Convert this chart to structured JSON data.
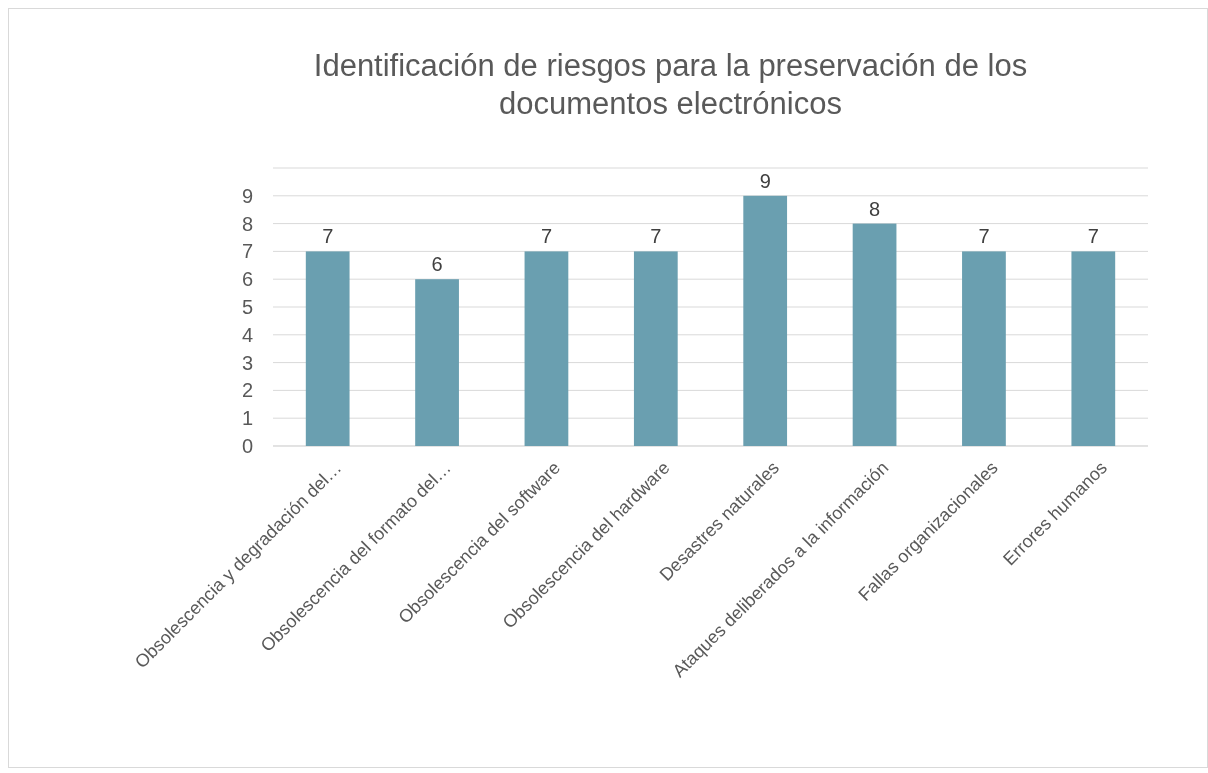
{
  "chart_data": {
    "type": "bar",
    "title": "Identificación de riesgos para la preservación de los documentos electrónicos",
    "categories": [
      "Obsolescencia y degradación del…",
      "Obsolescencia del formato del…",
      "Obsolescencia del software",
      "Obsolescencia del hardware",
      "Desastres naturales",
      "Ataques deliberados a la información",
      "Fallas organizacionales",
      "Errores humanos"
    ],
    "values": [
      7,
      6,
      7,
      7,
      9,
      8,
      7,
      7
    ],
    "color": "#6a9fb0",
    "ylim": [
      0,
      10
    ],
    "yticks": [
      0,
      1,
      2,
      3,
      4,
      5,
      6,
      7,
      8,
      9,
      {
        "value": 10,
        "label": null
      }
    ],
    "grid": "y",
    "data_labels": true
  }
}
